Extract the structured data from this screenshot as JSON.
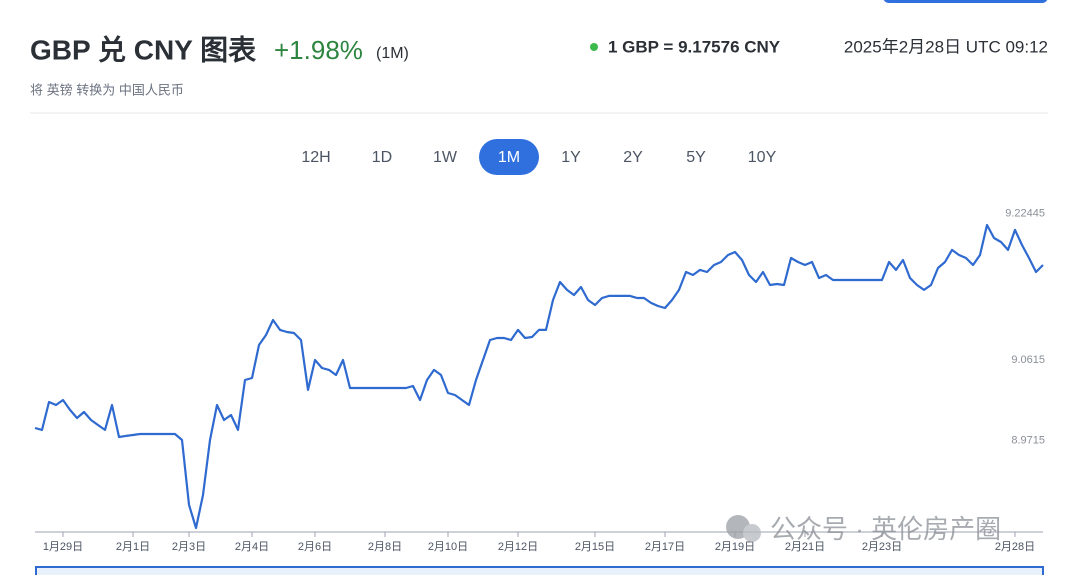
{
  "header": {
    "title": "GBP 兑 CNY 图表",
    "change": "+1.98%",
    "period": "(1M)",
    "rate": "1 GBP = 9.17576 CNY",
    "timestamp": "2025年2月28日 UTC 09:12",
    "subtitle": "将 英镑 转换为 中国人民币"
  },
  "tabs": {
    "items": [
      "12H",
      "1D",
      "1W",
      "1M",
      "1Y",
      "2Y",
      "5Y",
      "10Y"
    ],
    "active_index": 3
  },
  "watermark": "公众号 · 英伦房产圈",
  "chart_data": {
    "type": "line",
    "categories": [
      null,
      null,
      null,
      null,
      "1月29日",
      null,
      null,
      null,
      null,
      null,
      null,
      null,
      null,
      null,
      "2月1日",
      null,
      null,
      null,
      null,
      null,
      null,
      null,
      "2月3日",
      null,
      null,
      null,
      null,
      null,
      null,
      null,
      null,
      "2月4日",
      null,
      null,
      null,
      null,
      null,
      null,
      null,
      null,
      "2月6日",
      null,
      null,
      null,
      null,
      null,
      null,
      null,
      null,
      null,
      "2月8日",
      null,
      null,
      null,
      null,
      null,
      null,
      null,
      null,
      "2月10日",
      null,
      null,
      null,
      null,
      null,
      null,
      null,
      null,
      null,
      "2月12日",
      null,
      null,
      null,
      null,
      null,
      null,
      null,
      null,
      null,
      null,
      "2月15日",
      null,
      null,
      null,
      null,
      null,
      null,
      null,
      null,
      null,
      "2月17日",
      null,
      null,
      null,
      null,
      null,
      null,
      null,
      null,
      null,
      "2月19日",
      null,
      null,
      null,
      null,
      null,
      null,
      null,
      null,
      null,
      "2月21日",
      null,
      null,
      null,
      null,
      null,
      null,
      null,
      null,
      null,
      null,
      "2月23日",
      null,
      null,
      null,
      null,
      null,
      null,
      null,
      null,
      null,
      null,
      null,
      null,
      null,
      null,
      null,
      null,
      null,
      null,
      "2月28日",
      null,
      null,
      null,
      null
    ],
    "series": [
      {
        "name": "GBP/CNY",
        "color": "#2f6ad0",
        "values": [
          8.9857,
          8.9835,
          9.0147,
          9.0113,
          9.0169,
          9.0058,
          8.9968,
          9.0035,
          8.9946,
          8.989,
          8.9835,
          9.0113,
          8.9756,
          8.9768,
          8.9779,
          8.979,
          8.979,
          8.979,
          8.979,
          8.979,
          8.979,
          8.9723,
          8.9,
          8.8742,
          8.911,
          8.9723,
          9.0113,
          8.9946,
          9.0002,
          8.9835,
          9.0392,
          9.0414,
          9.0782,
          9.0894,
          9.1061,
          9.095,
          9.0927,
          9.0916,
          9.0838,
          9.0281,
          9.0615,
          9.0526,
          9.0504,
          9.0448,
          9.0615,
          9.0303,
          9.0303,
          9.0303,
          9.0303,
          9.0303,
          9.0303,
          9.0303,
          9.0303,
          9.0303,
          9.0325,
          9.0169,
          9.0392,
          9.0504,
          9.0448,
          9.0247,
          9.0225,
          9.0169,
          9.0113,
          9.0392,
          9.0615,
          9.0838,
          9.086,
          9.086,
          9.0838,
          9.095,
          9.086,
          9.0871,
          9.095,
          9.095,
          9.1284,
          9.1485,
          9.1396,
          9.134,
          9.1429,
          9.1284,
          9.1228,
          9.1306,
          9.1329,
          9.1329,
          9.1329,
          9.1329,
          9.1306,
          9.1306,
          9.1251,
          9.1217,
          9.1195,
          9.1284,
          9.1396,
          9.1596,
          9.1563,
          9.1619,
          9.1596,
          9.1674,
          9.1708,
          9.1786,
          9.1819,
          9.173,
          9.1563,
          9.1485,
          9.1596,
          9.1451,
          9.1462,
          9.1451,
          9.1752,
          9.1708,
          9.1674,
          9.1708,
          9.1529,
          9.1563,
          9.1507,
          9.1507,
          9.1507,
          9.1507,
          9.1507,
          9.1507,
          9.1507,
          9.1507,
          9.1708,
          9.1619,
          9.173,
          9.1529,
          9.1451,
          9.1396,
          9.1451,
          9.1641,
          9.1708,
          9.1842,
          9.1786,
          9.1752,
          9.1674,
          9.1786,
          9.212,
          9.1975,
          9.1931,
          9.1842,
          9.2065,
          9.1897,
          9.1752,
          9.1596,
          9.1674
        ]
      }
    ],
    "ylim": [
      8.8697,
      9.2343
    ],
    "yticks": [
      8.9715,
      9.0615,
      9.22445
    ],
    "grid": false
  }
}
